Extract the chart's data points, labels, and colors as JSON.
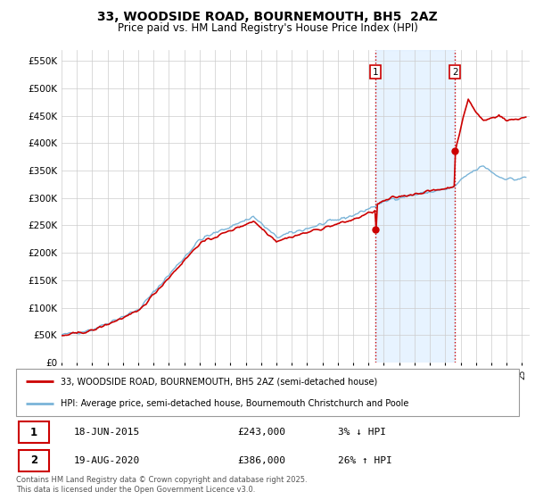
{
  "title": "33, WOODSIDE ROAD, BOURNEMOUTH, BH5  2AZ",
  "subtitle": "Price paid vs. HM Land Registry's House Price Index (HPI)",
  "ylabel_ticks": [
    "£0",
    "£50K",
    "£100K",
    "£150K",
    "£200K",
    "£250K",
    "£300K",
    "£350K",
    "£400K",
    "£450K",
    "£500K",
    "£550K"
  ],
  "ytick_values": [
    0,
    50000,
    100000,
    150000,
    200000,
    250000,
    300000,
    350000,
    400000,
    450000,
    500000,
    550000
  ],
  "ylim": [
    0,
    570000
  ],
  "xlim_start": 1995.0,
  "xlim_end": 2025.5,
  "hpi_color": "#7ab4d8",
  "price_color": "#cc0000",
  "marker_color": "#cc0000",
  "sale1_x": 2015.46,
  "sale1_y": 243000,
  "sale1_label": "1",
  "sale2_x": 2020.63,
  "sale2_y": 386000,
  "sale2_label": "2",
  "vline1_x": 2015.46,
  "vline2_x": 2020.63,
  "vline_color": "#cc0000",
  "vline_style": ":",
  "legend_line1": "33, WOODSIDE ROAD, BOURNEMOUTH, BH5 2AZ (semi-detached house)",
  "legend_line2": "HPI: Average price, semi-detached house, Bournemouth Christchurch and Poole",
  "table_row1_num": "1",
  "table_row1_date": "18-JUN-2015",
  "table_row1_price": "£243,000",
  "table_row1_hpi": "3% ↓ HPI",
  "table_row2_num": "2",
  "table_row2_date": "19-AUG-2020",
  "table_row2_price": "£386,000",
  "table_row2_hpi": "26% ↑ HPI",
  "footer": "Contains HM Land Registry data © Crown copyright and database right 2025.\nThis data is licensed under the Open Government Licence v3.0.",
  "background_color": "#ffffff",
  "plot_bg_color": "#ffffff",
  "grid_color": "#cccccc",
  "shaded_region_color": "#ddeeff",
  "title_fontsize": 10,
  "subtitle_fontsize": 8.5,
  "tick_fontsize": 7.5
}
